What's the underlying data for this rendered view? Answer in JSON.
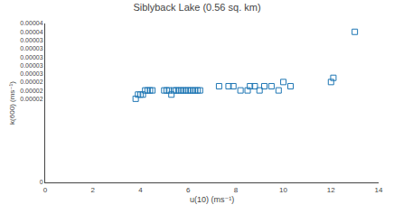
{
  "chart_data": {
    "type": "scatter",
    "title": "Siblyback Lake (0.56 sq. km)",
    "xlabel": "u(10) (ms⁻¹)",
    "ylabel": "k(600) (ms⁻¹)",
    "marker": "square-open",
    "grid": false,
    "xlim": [
      0,
      14
    ],
    "ylim": [
      0,
      3.8e-05
    ],
    "xticks": [
      0,
      2,
      4,
      6,
      8,
      10,
      12,
      14
    ],
    "yticks": [
      0,
      {
        "value": 2e-05,
        "label": "0.00002"
      },
      {
        "value": 2.2e-05,
        "label": "0.00002"
      },
      {
        "value": 2.4e-05,
        "label": "0.00002"
      },
      {
        "value": 2.6e-05,
        "label": "0.00003"
      },
      {
        "value": 2.8e-05,
        "label": "0.00003"
      },
      {
        "value": 3e-05,
        "label": "0.00003"
      },
      {
        "value": 3.2e-05,
        "label": "0.00003"
      },
      {
        "value": 3.4e-05,
        "label": "0.00003"
      },
      {
        "value": 3.6e-05,
        "label": "0.00004"
      },
      {
        "value": 3.8e-05,
        "label": "0.00004"
      }
    ],
    "x": [
      3.8,
      3.9,
      4.0,
      4.1,
      4.2,
      4.3,
      4.4,
      4.5,
      5.0,
      5.1,
      5.2,
      5.3,
      5.4,
      5.5,
      5.6,
      5.7,
      5.8,
      5.9,
      6.0,
      6.1,
      6.2,
      6.3,
      6.4,
      6.5,
      7.3,
      7.7,
      7.9,
      8.2,
      8.5,
      8.6,
      8.8,
      9.0,
      9.2,
      9.5,
      9.8,
      10.0,
      10.3,
      12.0,
      12.1,
      13.0
    ],
    "values": [
      2e-05,
      2.1e-05,
      2.1e-05,
      2.1e-05,
      2.2e-05,
      2.2e-05,
      2.2e-05,
      2.2e-05,
      2.2e-05,
      2.2e-05,
      2.2e-05,
      2.1e-05,
      2.2e-05,
      2.2e-05,
      2.2e-05,
      2.2e-05,
      2.2e-05,
      2.2e-05,
      2.2e-05,
      2.2e-05,
      2.2e-05,
      2.2e-05,
      2.2e-05,
      2.2e-05,
      2.3e-05,
      2.3e-05,
      2.3e-05,
      2.2e-05,
      2.2e-05,
      2.3e-05,
      2.3e-05,
      2.2e-05,
      2.3e-05,
      2.3e-05,
      2.2e-05,
      2.4e-05,
      2.3e-05,
      2.4e-05,
      2.5e-05,
      3.6e-05
    ]
  }
}
